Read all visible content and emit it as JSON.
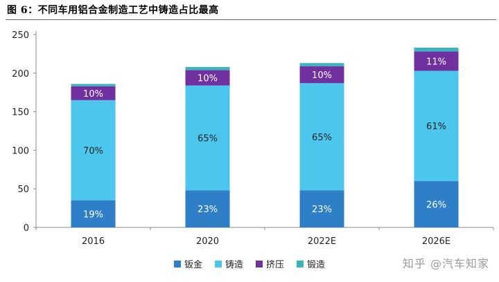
{
  "title": "图  6：不同车用铝合金制造工艺中铸造占比最高",
  "watermark": "知乎 @汽车知家",
  "chart_data": {
    "type": "bar",
    "stacked": true,
    "categories": [
      "2016",
      "2020",
      "2022E",
      "2026E"
    ],
    "ylim": [
      0,
      250
    ],
    "yticks": [
      0,
      50,
      100,
      150,
      200,
      250
    ],
    "grid": false,
    "legend_position": "bottom",
    "series": [
      {
        "name": "钣金",
        "color": "#2e7fc8",
        "values": [
          35,
          48,
          48,
          60
        ],
        "labels": [
          "19%",
          "23%",
          "23%",
          "26%"
        ]
      },
      {
        "name": "铸造",
        "color": "#4dc6ee",
        "values": [
          130,
          136,
          139,
          143
        ],
        "labels": [
          "70%",
          "65%",
          "65%",
          "61%"
        ]
      },
      {
        "name": "挤压",
        "color": "#7030a0",
        "values": [
          18,
          20,
          22,
          25
        ],
        "labels": [
          "10%",
          "10%",
          "10%",
          "11%"
        ]
      },
      {
        "name": "锻造",
        "color": "#3ab5bd",
        "values": [
          3,
          4,
          4,
          5
        ],
        "labels": [
          "",
          "",
          "",
          ""
        ]
      }
    ]
  }
}
